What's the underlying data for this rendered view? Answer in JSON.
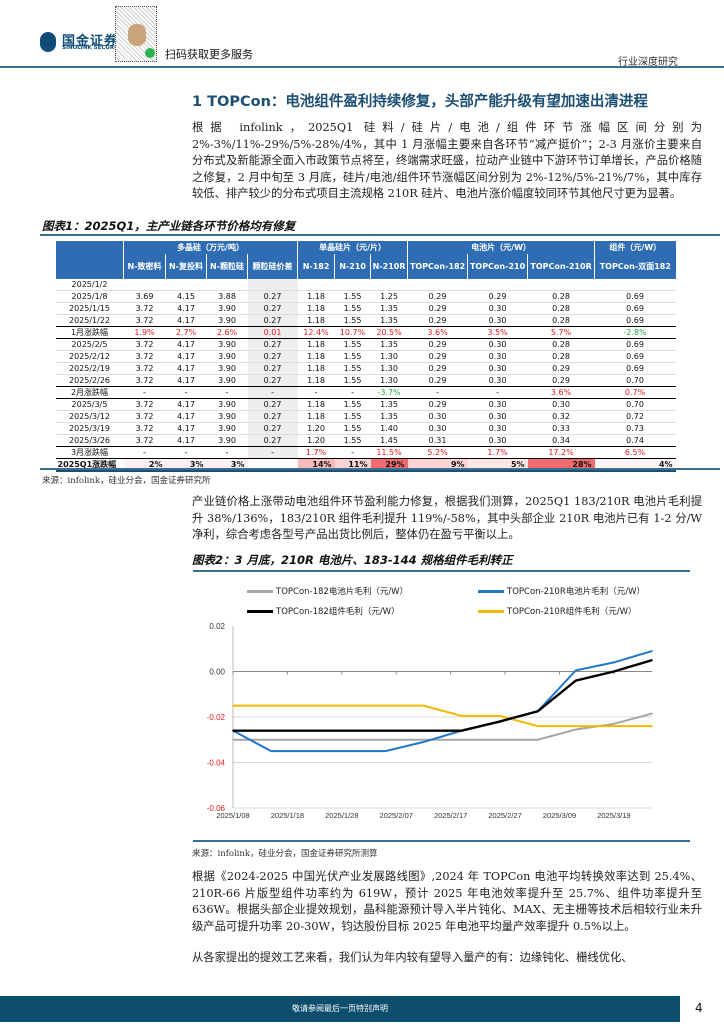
{
  "header": {
    "brand_cn": "国金证券",
    "brand_en": "SINOLINK SECURITIES",
    "scan_text": "扫码获取更多服务",
    "report_type": "行业深度研究"
  },
  "section_title": "1 TOPCon：电池组件盈利持续修复，头部产能升级有望加速出清进程",
  "para1": "根据 infolink，2025Q1 硅料/硅片/电池/组件环节涨幅区间分别为 2%-3%/11%-29%/5%-28%/4%，其中 1 月涨幅主要来自各环节“减产挺价”；2-3 月涨价主要来自分布式及新能源全面入市政策节点将至，终端需求旺盛，拉动产业链中下游环节订单增长，产品价格随之修复，2 月中旬至 3 月底，硅片/电池/组件环节涨幅区间分别为 2%-12%/5%-21%/7%，其中库存较低、排产较少的分布式项目主流规格 210R 硅片、电池片涨价幅度较同环节其他尺寸更为显著。",
  "figure1": {
    "caption": "图表1：2025Q1，主产业链各环节价格均有修复",
    "groups": [
      "多晶硅（万元/吨）",
      "单晶硅片（元/片）",
      "电池片（元/W）",
      "组件（元/W）"
    ],
    "columns": [
      "N-致密料",
      "N-复投料",
      "N-颗粒硅",
      "颗粒硅价差",
      "N-182",
      "N-210",
      "N-210R",
      "TOPCon-182",
      "TOPCon-210",
      "TOPCon-210R",
      "TOPCon-双面182"
    ],
    "rows": [
      {
        "label": "2025/1/2",
        "cells": [
          "",
          "",
          "",
          "",
          "",
          "",
          "",
          "",
          "",
          "",
          ""
        ]
      },
      {
        "label": "2025/1/8",
        "cells": [
          "3.69",
          "4.15",
          "3.88",
          "0.27",
          "1.18",
          "1.55",
          "1.25",
          "0.29",
          "0.29",
          "0.28",
          "0.69"
        ]
      },
      {
        "label": "2025/1/15",
        "cells": [
          "3.72",
          "4.17",
          "3.90",
          "0.27",
          "1.18",
          "1.55",
          "1.35",
          "0.29",
          "0.30",
          "0.28",
          "0.69"
        ]
      },
      {
        "label": "2025/1/22",
        "cells": [
          "3.72",
          "4.17",
          "3.90",
          "0.27",
          "1.18",
          "1.55",
          "1.35",
          "0.29",
          "0.30",
          "0.28",
          "0.69"
        ]
      },
      {
        "label": "1月涨跌幅",
        "change": true,
        "cells": [
          "1.9%",
          "2.7%",
          "2.6%",
          "0.01",
          "12.4%",
          "10.7%",
          "20.5%",
          "3.6%",
          "3.5%",
          "5.7%",
          "-2.8%"
        ]
      },
      {
        "label": "2025/2/5",
        "cells": [
          "3.72",
          "4.17",
          "3.90",
          "0.27",
          "1.18",
          "1.55",
          "1.35",
          "0.29",
          "0.30",
          "0.28",
          "0.69"
        ]
      },
      {
        "label": "2025/2/12",
        "cells": [
          "3.72",
          "4.17",
          "3.90",
          "0.27",
          "1.18",
          "1.55",
          "1.30",
          "0.29",
          "0.30",
          "0.28",
          "0.69"
        ]
      },
      {
        "label": "2025/2/19",
        "cells": [
          "3.72",
          "4.17",
          "3.90",
          "0.27",
          "1.18",
          "1.55",
          "1.30",
          "0.29",
          "0.30",
          "0.29",
          "0.69"
        ]
      },
      {
        "label": "2025/2/26",
        "cells": [
          "3.72",
          "4.17",
          "3.90",
          "0.27",
          "1.18",
          "1.55",
          "1.30",
          "0.29",
          "0.30",
          "0.29",
          "0.70"
        ]
      },
      {
        "label": "2月涨跌幅",
        "change": true,
        "cells": [
          "-",
          "-",
          "-",
          "-",
          "-",
          "-",
          "-3.7%",
          "-",
          "-",
          "3.6%",
          "0.7%"
        ]
      },
      {
        "label": "2025/3/5",
        "cells": [
          "3.72",
          "4.17",
          "3.90",
          "0.27",
          "1.18",
          "1.55",
          "1.35",
          "0.29",
          "0.30",
          "0.30",
          "0.70"
        ]
      },
      {
        "label": "2025/3/12",
        "cells": [
          "3.72",
          "4.17",
          "3.90",
          "0.27",
          "1.18",
          "1.55",
          "1.35",
          "0.30",
          "0.30",
          "0.32",
          "0.72"
        ]
      },
      {
        "label": "2025/3/19",
        "cells": [
          "3.72",
          "4.17",
          "3.90",
          "0.27",
          "1.20",
          "1.55",
          "1.40",
          "0.30",
          "0.30",
          "0.33",
          "0.73"
        ]
      },
      {
        "label": "2025/3/26",
        "cells": [
          "3.72",
          "4.17",
          "3.90",
          "0.27",
          "1.20",
          "1.55",
          "1.45",
          "0.31",
          "0.30",
          "0.34",
          "0.74"
        ]
      },
      {
        "label": "3月涨跌幅",
        "change": true,
        "cells": [
          "-",
          "-",
          "-",
          "-",
          "1.7%",
          "-",
          "11.5%",
          "5.2%",
          "1.7%",
          "17.2%",
          "6.5%"
        ]
      }
    ],
    "total": {
      "label": "2025Q1涨跌幅",
      "cells": [
        "2%",
        "3%",
        "3%",
        "",
        "14%",
        "11%",
        "29%",
        "9%",
        "5%",
        "28%",
        "4%"
      ]
    },
    "source": "来源：infolink，硅业分会，国金证券研究所"
  },
  "para2": "产业链价格上涨带动电池组件环节盈利能力修复，根据我们测算，2025Q1 183/210R 电池片毛利提升 38%/136%，183/210R 组件毛利提升 119%/-58%，其中头部企业 210R 电池片已有 1-2 分/W 净利，综合考虑各型号产品出货比例后，整体仍在盈亏平衡以上。",
  "figure2": {
    "caption": "图表2：3 月底，210R 电池片、183-144 规格组件毛利转正",
    "source": "来源：infolink，硅业分会，国金证券研究所测算"
  },
  "chart_data": {
    "type": "line",
    "title": "",
    "xlabel": "",
    "ylabel": "",
    "x": [
      "2025/1/8",
      "2025/1/15",
      "2025/1/22",
      "2025/1/29",
      "2025/2/5",
      "2025/2/12",
      "2025/2/19",
      "2025/2/26",
      "2025/3/5",
      "2025/3/12",
      "2025/3/19",
      "2025/3/26"
    ],
    "x_ticks": [
      "2025/1/08",
      "2025/1/18",
      "2025/1/28",
      "2025/2/07",
      "2025/2/17",
      "2025/2/27",
      "2025/3/09",
      "2025/3/19"
    ],
    "y_ticks": [
      "0.02",
      "0.00",
      "-0.02",
      "-0.04",
      "-0.06"
    ],
    "ylim": [
      -0.06,
      0.02
    ],
    "legend_position": "top",
    "series": [
      {
        "name": "TOPCon-182电池片毛利（元/W）",
        "color": "#a6a6a6",
        "values": [
          -0.03,
          -0.03,
          -0.03,
          -0.03,
          -0.03,
          -0.03,
          -0.03,
          -0.03,
          -0.03,
          -0.0255,
          -0.023,
          -0.0185
        ]
      },
      {
        "name": "TOPCon-210R电池片毛利（元/W）",
        "color": "#1f78c8",
        "values": [
          -0.026,
          -0.035,
          -0.035,
          -0.035,
          -0.035,
          -0.031,
          -0.026,
          -0.022,
          -0.0175,
          0.0005,
          0.004,
          0.009
        ]
      },
      {
        "name": "TOPCon-182组件毛利（元/W）",
        "color": "#000000",
        "values": [
          -0.026,
          -0.026,
          -0.026,
          -0.026,
          -0.026,
          -0.026,
          -0.026,
          -0.022,
          -0.0175,
          -0.004,
          0.0,
          0.005
        ]
      },
      {
        "name": "TOPCon-210R组件毛利（元/W）",
        "color": "#f5b800",
        "values": [
          -0.015,
          -0.015,
          -0.015,
          -0.015,
          -0.015,
          -0.015,
          -0.0195,
          -0.0195,
          -0.024,
          -0.024,
          -0.024,
          -0.024
        ]
      }
    ]
  },
  "para3": "根据《2024-2025 中国光伏产业发展路线图》,2024 年 TOPCon 电池平均转换效率达到 25.4%、210R-66 片版型组件功率约为 619W，预计 2025 年电池效率提升至 25.7%、组件功率提升至 636W。根据头部企业提效规划，晶科能源预计导入半片钝化、MAX、无主栅等技术后相较行业未升级产品可提升功率 20-30W，钧达股份目标 2025 年电池平均量产效率提升 0.5%以上。",
  "para4": "从各家提出的提效工艺来看，我们认为年内较有望导入量产的有：边缘钝化、栅线优化、",
  "footer": {
    "notice": "敬请参阅最后一页特别声明",
    "page": "4"
  },
  "colors": {
    "brand": "#0d4d6e",
    "table_header": "#2e6db4",
    "up": "#e51b1b",
    "down": "#22a845"
  }
}
